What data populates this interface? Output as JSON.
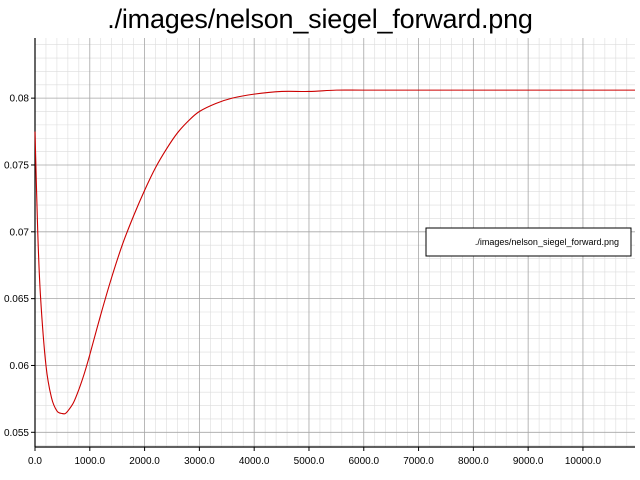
{
  "chart_data": {
    "type": "line",
    "title": "./images/nelson_siegel_forward.png",
    "xlabel": "",
    "ylabel": "",
    "xlim": [
      0,
      10950
    ],
    "ylim": [
      0.0539,
      0.0845
    ],
    "x_ticks": [
      "0.0",
      "1000.0",
      "2000.0",
      "3000.0",
      "4000.0",
      "5000.0",
      "6000.0",
      "7000.0",
      "8000.0",
      "9000.0",
      "10000.0"
    ],
    "y_ticks": [
      "0.055",
      "0.06",
      "0.065",
      "0.07",
      "0.075",
      "0.08"
    ],
    "grid": true,
    "legend_position": "right",
    "series": [
      {
        "name": "./images/nelson_siegel_forward.png",
        "color": "#cc0000",
        "x": [
          0,
          50,
          100,
          200,
          300,
          400,
          500,
          550,
          600,
          700,
          800,
          900,
          1000,
          1200,
          1400,
          1600,
          1800,
          2000,
          2200,
          2400,
          2600,
          2800,
          3000,
          3300,
          3600,
          4000,
          4500,
          5000,
          5500,
          6000,
          7000,
          8000,
          9000,
          10000,
          10950
        ],
        "y": [
          0.0775,
          0.07,
          0.0652,
          0.06,
          0.0576,
          0.0566,
          0.0564,
          0.0564,
          0.0566,
          0.0572,
          0.0582,
          0.0594,
          0.0608,
          0.0638,
          0.0666,
          0.0691,
          0.0712,
          0.0731,
          0.0748,
          0.0762,
          0.0774,
          0.0783,
          0.079,
          0.0796,
          0.08,
          0.0803,
          0.0805,
          0.0805,
          0.0806,
          0.0806,
          0.0806,
          0.0806,
          0.0806,
          0.0806,
          0.0806
        ]
      }
    ]
  }
}
